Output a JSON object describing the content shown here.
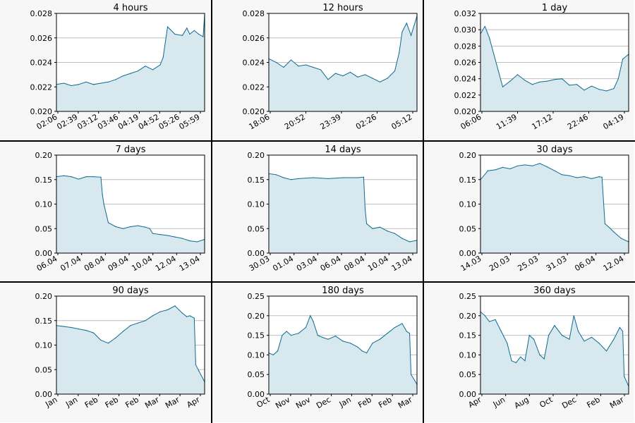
{
  "colors": {
    "line": "#0d6b91",
    "fill": "#d8e8ef",
    "panel_bg": "#f7f7f7",
    "grid": "#bfbfbf"
  },
  "chart_data": [
    {
      "type": "area",
      "title": "4 hours",
      "ylim": [
        0.02,
        0.028
      ],
      "yticks": [
        "0.020",
        "0.022",
        "0.024",
        "0.026",
        "0.028"
      ],
      "xticks": [
        "02:06",
        "02:39",
        "03:12",
        "03:46",
        "04:19",
        "04:52",
        "05:26",
        "05:59"
      ],
      "x": [
        0,
        0.05,
        0.1,
        0.15,
        0.2,
        0.25,
        0.3,
        0.35,
        0.4,
        0.45,
        0.5,
        0.55,
        0.6,
        0.65,
        0.7,
        0.72,
        0.75,
        0.8,
        0.85,
        0.88,
        0.9,
        0.93,
        0.96,
        0.99,
        1.0
      ],
      "y": [
        0.0222,
        0.0223,
        0.0221,
        0.0222,
        0.0224,
        0.0222,
        0.0223,
        0.0224,
        0.0226,
        0.0229,
        0.0231,
        0.0233,
        0.0237,
        0.0234,
        0.0238,
        0.0244,
        0.0269,
        0.0263,
        0.0262,
        0.0268,
        0.0263,
        0.0266,
        0.0263,
        0.0261,
        0.0279
      ],
      "grid": true
    },
    {
      "type": "area",
      "title": "12 hours",
      "ylim": [
        0.02,
        0.028
      ],
      "yticks": [
        "0.020",
        "0.022",
        "0.024",
        "0.026",
        "0.028"
      ],
      "xticks": [
        "18:06",
        "20:52",
        "23:39",
        "02:26",
        "05:12"
      ],
      "x": [
        0,
        0.05,
        0.1,
        0.15,
        0.2,
        0.25,
        0.3,
        0.35,
        0.4,
        0.45,
        0.5,
        0.55,
        0.6,
        0.65,
        0.7,
        0.75,
        0.8,
        0.85,
        0.88,
        0.9,
        0.93,
        0.96,
        1.0
      ],
      "y": [
        0.0243,
        0.024,
        0.0236,
        0.0242,
        0.0237,
        0.0238,
        0.0236,
        0.0234,
        0.0226,
        0.0231,
        0.0229,
        0.0232,
        0.0228,
        0.023,
        0.0227,
        0.0224,
        0.0227,
        0.0233,
        0.0248,
        0.0265,
        0.0272,
        0.0262,
        0.0278
      ],
      "grid": true
    },
    {
      "type": "area",
      "title": "1 day",
      "ylim": [
        0.02,
        0.032
      ],
      "yticks": [
        "0.020",
        "0.022",
        "0.024",
        "0.026",
        "0.028",
        "0.030",
        "0.032"
      ],
      "xticks": [
        "06:06",
        "11:39",
        "17:12",
        "22:46",
        "04:19"
      ],
      "x": [
        0,
        0.03,
        0.06,
        0.09,
        0.12,
        0.15,
        0.2,
        0.25,
        0.3,
        0.35,
        0.4,
        0.45,
        0.5,
        0.55,
        0.6,
        0.65,
        0.7,
        0.75,
        0.8,
        0.85,
        0.9,
        0.93,
        0.96,
        1.0
      ],
      "y": [
        0.0295,
        0.0304,
        0.029,
        0.027,
        0.025,
        0.023,
        0.0237,
        0.0245,
        0.0238,
        0.0233,
        0.0236,
        0.0237,
        0.0239,
        0.024,
        0.0232,
        0.0233,
        0.0226,
        0.0231,
        0.0227,
        0.0225,
        0.0228,
        0.024,
        0.0264,
        0.027
      ],
      "grid": true
    },
    {
      "type": "area",
      "title": "7 days",
      "ylim": [
        0,
        0.2
      ],
      "yticks": [
        "0.00",
        "0.05",
        "0.10",
        "0.15",
        "0.20"
      ],
      "xticks": [
        "06.04",
        "07.04",
        "08.04",
        "09.04",
        "10.04",
        "12.04",
        "13.04"
      ],
      "x": [
        0,
        0.05,
        0.1,
        0.15,
        0.2,
        0.25,
        0.3,
        0.31,
        0.32,
        0.35,
        0.4,
        0.45,
        0.5,
        0.55,
        0.6,
        0.63,
        0.65,
        0.7,
        0.75,
        0.8,
        0.85,
        0.9,
        0.95,
        1.0
      ],
      "y": [
        0.156,
        0.158,
        0.156,
        0.151,
        0.156,
        0.156,
        0.155,
        0.12,
        0.1,
        0.062,
        0.054,
        0.05,
        0.054,
        0.056,
        0.053,
        0.05,
        0.04,
        0.038,
        0.036,
        0.033,
        0.03,
        0.025,
        0.023,
        0.028
      ],
      "grid": true
    },
    {
      "type": "area",
      "title": "14 days",
      "ylim": [
        0,
        0.2
      ],
      "yticks": [
        "0.00",
        "0.05",
        "0.10",
        "0.15",
        "0.20"
      ],
      "xticks": [
        "30.03",
        "01.04",
        "03.04",
        "06.04",
        "08.04",
        "10.04",
        "13.04"
      ],
      "x": [
        0,
        0.05,
        0.1,
        0.15,
        0.2,
        0.3,
        0.4,
        0.5,
        0.6,
        0.64,
        0.65,
        0.66,
        0.7,
        0.75,
        0.8,
        0.85,
        0.9,
        0.95,
        1.0
      ],
      "y": [
        0.162,
        0.16,
        0.154,
        0.15,
        0.152,
        0.154,
        0.152,
        0.154,
        0.154,
        0.155,
        0.09,
        0.06,
        0.05,
        0.053,
        0.045,
        0.04,
        0.03,
        0.023,
        0.026
      ],
      "grid": true
    },
    {
      "type": "area",
      "title": "30 days",
      "ylim": [
        0,
        0.2
      ],
      "yticks": [
        "0.00",
        "0.05",
        "0.10",
        "0.15",
        "0.20"
      ],
      "xticks": [
        "14.03",
        "20.03",
        "25.03",
        "31.03",
        "06.04",
        "12.04"
      ],
      "x": [
        0,
        0.05,
        0.1,
        0.15,
        0.2,
        0.25,
        0.3,
        0.35,
        0.4,
        0.45,
        0.5,
        0.55,
        0.6,
        0.65,
        0.7,
        0.75,
        0.8,
        0.82,
        0.84,
        0.87,
        0.9,
        0.95,
        1.0
      ],
      "y": [
        0.15,
        0.168,
        0.17,
        0.175,
        0.172,
        0.178,
        0.18,
        0.178,
        0.183,
        0.176,
        0.168,
        0.16,
        0.158,
        0.154,
        0.156,
        0.152,
        0.156,
        0.155,
        0.06,
        0.052,
        0.043,
        0.03,
        0.023
      ],
      "grid": true
    },
    {
      "type": "area",
      "title": "90 days",
      "ylim": [
        0,
        0.2
      ],
      "yticks": [
        "0.00",
        "0.05",
        "0.10",
        "0.15",
        "0.20"
      ],
      "xticks": [
        "Jan",
        "Jan",
        "Feb",
        "Feb",
        "Feb",
        "Mar",
        "Mar",
        "Apr"
      ],
      "x": [
        0,
        0.05,
        0.1,
        0.15,
        0.2,
        0.25,
        0.3,
        0.35,
        0.4,
        0.45,
        0.5,
        0.55,
        0.6,
        0.65,
        0.7,
        0.75,
        0.8,
        0.85,
        0.88,
        0.9,
        0.93,
        0.94,
        0.96,
        1.0
      ],
      "y": [
        0.14,
        0.138,
        0.136,
        0.133,
        0.13,
        0.125,
        0.11,
        0.104,
        0.115,
        0.128,
        0.14,
        0.145,
        0.15,
        0.16,
        0.168,
        0.172,
        0.18,
        0.165,
        0.158,
        0.16,
        0.155,
        0.06,
        0.048,
        0.025
      ],
      "grid": true
    },
    {
      "type": "area",
      "title": "180 days",
      "ylim": [
        0,
        0.25
      ],
      "yticks": [
        "0.00",
        "0.05",
        "0.10",
        "0.15",
        "0.20",
        "0.25"
      ],
      "xticks": [
        "Oct",
        "Nov",
        "Nov",
        "Dec",
        "Jan",
        "Feb",
        "Feb",
        "Mar"
      ],
      "x": [
        0,
        0.03,
        0.06,
        0.09,
        0.12,
        0.15,
        0.2,
        0.25,
        0.28,
        0.3,
        0.33,
        0.36,
        0.4,
        0.45,
        0.5,
        0.55,
        0.6,
        0.63,
        0.66,
        0.7,
        0.75,
        0.8,
        0.85,
        0.9,
        0.93,
        0.95,
        0.96,
        1.0
      ],
      "y": [
        0.105,
        0.1,
        0.11,
        0.15,
        0.16,
        0.15,
        0.155,
        0.17,
        0.2,
        0.185,
        0.15,
        0.145,
        0.14,
        0.148,
        0.135,
        0.13,
        0.12,
        0.11,
        0.105,
        0.13,
        0.14,
        0.155,
        0.17,
        0.18,
        0.16,
        0.155,
        0.05,
        0.025
      ],
      "grid": true
    },
    {
      "type": "area",
      "title": "360 days",
      "ylim": [
        0,
        0.25
      ],
      "yticks": [
        "0.00",
        "0.05",
        "0.10",
        "0.15",
        "0.20",
        "0.25"
      ],
      "xticks": [
        "Apr",
        "Jun",
        "Aug",
        "Oct",
        "Dec",
        "Feb",
        "Mar"
      ],
      "x": [
        0,
        0.03,
        0.06,
        0.1,
        0.14,
        0.18,
        0.21,
        0.24,
        0.27,
        0.3,
        0.33,
        0.36,
        0.4,
        0.43,
        0.46,
        0.5,
        0.55,
        0.6,
        0.63,
        0.66,
        0.7,
        0.75,
        0.8,
        0.85,
        0.9,
        0.94,
        0.96,
        0.97,
        1.0
      ],
      "y": [
        0.21,
        0.2,
        0.185,
        0.19,
        0.16,
        0.13,
        0.085,
        0.08,
        0.095,
        0.085,
        0.15,
        0.14,
        0.1,
        0.09,
        0.15,
        0.175,
        0.15,
        0.14,
        0.2,
        0.16,
        0.135,
        0.145,
        0.13,
        0.11,
        0.14,
        0.17,
        0.16,
        0.045,
        0.02
      ],
      "grid": true
    }
  ]
}
